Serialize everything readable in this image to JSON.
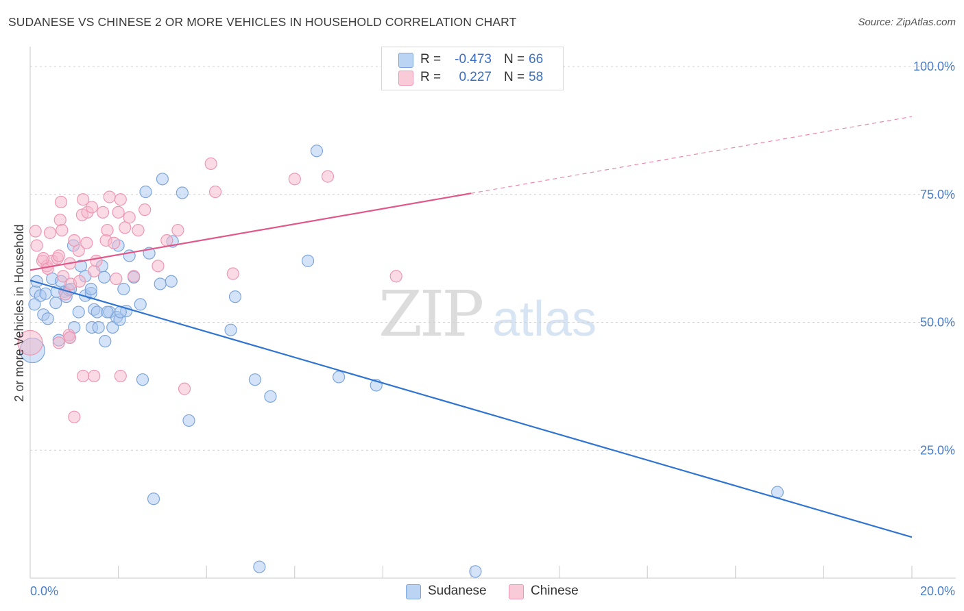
{
  "header": {
    "title": "SUDANESE VS CHINESE 2 OR MORE VEHICLES IN HOUSEHOLD CORRELATION CHART",
    "source": "Source: ZipAtlas.com"
  },
  "watermark": {
    "zip": "ZIP",
    "atlas": "atlas"
  },
  "legend": {
    "rows": [
      {
        "r_label": "R =",
        "r_value": "-0.473",
        "n_label": "N =",
        "n_value": "66"
      },
      {
        "r_label": "R =",
        "r_value": "0.227",
        "n_label": "N =",
        "n_value": "58"
      }
    ]
  },
  "bottom_legend": [
    "Sudanese",
    "Chinese"
  ],
  "colors": {
    "sudanese_fill": "#a9c7ef",
    "sudanese_stroke": "#7ea6db",
    "sudanese_line": "#2f74d0",
    "chinese_fill": "#f6b8cb",
    "chinese_stroke": "#ee97b2",
    "chinese_line": "#e0588a",
    "grid": "#d0d0d0",
    "axis_text": "#4a7dc8"
  },
  "chart_data": {
    "type": "scatter",
    "title": "SUDANESE VS CHINESE 2 OR MORE VEHICLES IN HOUSEHOLD CORRELATION CHART",
    "xlabel": "",
    "ylabel": "2 or more Vehicles in Household",
    "xlim": [
      0,
      20
    ],
    "ylim": [
      0,
      105
    ],
    "x_tick_labels": [
      "0.0%",
      "20.0%"
    ],
    "y_ticks": [
      25,
      50,
      75,
      100
    ],
    "y_tick_labels": [
      "25.0%",
      "50.0%",
      "75.0%",
      "100.0%"
    ],
    "grid": true,
    "legend_position": "top-center",
    "series": [
      {
        "name": "Sudanese",
        "R": -0.473,
        "N": 66,
        "trend": {
          "x0": 0,
          "y0": 58.2,
          "x1": 20,
          "y1": 8.0,
          "dashed_from": null
        },
        "points": [
          [
            0.12,
            56.0
          ],
          [
            0.23,
            55.2
          ],
          [
            0.35,
            55.6
          ],
          [
            0.1,
            53.5
          ],
          [
            0.3,
            51.5
          ],
          [
            0.4,
            50.7
          ],
          [
            0.5,
            58.5
          ],
          [
            0.7,
            58.0
          ],
          [
            0.78,
            56.0
          ],
          [
            0.82,
            55.0
          ],
          [
            0.88,
            56.3
          ],
          [
            0.9,
            47.0
          ],
          [
            0.92,
            56.5
          ],
          [
            0.58,
            53.8
          ],
          [
            0.65,
            46.5
          ],
          [
            0.98,
            65.0
          ],
          [
            1.15,
            61.0
          ],
          [
            1.1,
            52.0
          ],
          [
            1.0,
            49.0
          ],
          [
            1.25,
            55.2
          ],
          [
            1.38,
            55.7
          ],
          [
            1.45,
            52.5
          ],
          [
            1.4,
            49.0
          ],
          [
            1.52,
            52.0
          ],
          [
            1.55,
            49.0
          ],
          [
            1.63,
            61.0
          ],
          [
            1.68,
            58.8
          ],
          [
            1.7,
            46.3
          ],
          [
            1.25,
            59.0
          ],
          [
            1.38,
            56.5
          ],
          [
            1.8,
            52.0
          ],
          [
            1.87,
            49.0
          ],
          [
            1.96,
            51.0
          ],
          [
            2.0,
            65.0
          ],
          [
            2.03,
            50.5
          ],
          [
            2.12,
            56.5
          ],
          [
            2.18,
            52.2
          ],
          [
            2.25,
            63.0
          ],
          [
            2.35,
            58.8
          ],
          [
            2.5,
            53.5
          ],
          [
            2.55,
            38.8
          ],
          [
            2.62,
            75.5
          ],
          [
            2.7,
            63.5
          ],
          [
            2.95,
            57.5
          ],
          [
            3.0,
            78.0
          ],
          [
            3.2,
            58.0
          ],
          [
            3.23,
            65.8
          ],
          [
            3.45,
            75.3
          ],
          [
            3.6,
            30.8
          ],
          [
            2.8,
            15.5
          ],
          [
            4.55,
            48.5
          ],
          [
            4.65,
            55.0
          ],
          [
            5.1,
            38.8
          ],
          [
            5.2,
            2.2
          ],
          [
            5.45,
            35.5
          ],
          [
            6.3,
            62.0
          ],
          [
            6.5,
            83.5
          ],
          [
            7.0,
            39.3
          ],
          [
            7.85,
            37.7
          ],
          [
            10.1,
            1.3
          ],
          [
            16.95,
            16.8
          ],
          [
            0.05,
            44.5
          ],
          [
            0.15,
            58.0
          ],
          [
            1.75,
            52.0
          ],
          [
            2.05,
            52.0
          ],
          [
            0.6,
            56.0
          ]
        ]
      },
      {
        "name": "Chinese",
        "R": 0.227,
        "N": 58,
        "trend": {
          "x0": 0,
          "y0": 60.2,
          "x1": 20,
          "y1": 90.2,
          "dashed_from": 10.0
        },
        "points": [
          [
            0.12,
            67.8
          ],
          [
            0.15,
            65.0
          ],
          [
            0.28,
            62.0
          ],
          [
            0.38,
            61.0
          ],
          [
            0.4,
            60.5
          ],
          [
            0.45,
            67.5
          ],
          [
            0.5,
            62.0
          ],
          [
            0.62,
            62.5
          ],
          [
            0.65,
            63.0
          ],
          [
            0.68,
            70.0
          ],
          [
            0.7,
            73.5
          ],
          [
            0.72,
            68.0
          ],
          [
            0.75,
            59.0
          ],
          [
            0.8,
            55.5
          ],
          [
            0.88,
            47.5
          ],
          [
            0.9,
            61.5
          ],
          [
            0.92,
            57.5
          ],
          [
            1.0,
            66.0
          ],
          [
            1.1,
            64.0
          ],
          [
            1.12,
            58.0
          ],
          [
            1.18,
            71.0
          ],
          [
            1.2,
            74.0
          ],
          [
            1.28,
            65.5
          ],
          [
            1.3,
            71.5
          ],
          [
            1.4,
            72.5
          ],
          [
            1.45,
            60.0
          ],
          [
            1.5,
            62.0
          ],
          [
            1.65,
            71.5
          ],
          [
            1.72,
            66.0
          ],
          [
            1.75,
            68.0
          ],
          [
            1.8,
            74.5
          ],
          [
            1.9,
            65.5
          ],
          [
            1.95,
            58.5
          ],
          [
            2.0,
            71.5
          ],
          [
            2.05,
            74.0
          ],
          [
            2.15,
            68.5
          ],
          [
            2.25,
            70.5
          ],
          [
            2.35,
            59.0
          ],
          [
            2.45,
            68.0
          ],
          [
            2.6,
            72.0
          ],
          [
            2.05,
            39.5
          ],
          [
            2.9,
            61.0
          ],
          [
            3.1,
            66.0
          ],
          [
            3.35,
            68.0
          ],
          [
            3.5,
            37.0
          ],
          [
            4.1,
            81.0
          ],
          [
            4.2,
            75.5
          ],
          [
            4.6,
            59.5
          ],
          [
            6.0,
            78.0
          ],
          [
            6.75,
            78.5
          ],
          [
            8.3,
            59.0
          ],
          [
            1.0,
            31.5
          ],
          [
            1.2,
            39.5
          ],
          [
            1.45,
            39.5
          ],
          [
            0.9,
            47.0
          ],
          [
            0.65,
            46.0
          ],
          [
            0.0,
            46.0
          ],
          [
            0.3,
            62.5
          ]
        ]
      }
    ]
  }
}
